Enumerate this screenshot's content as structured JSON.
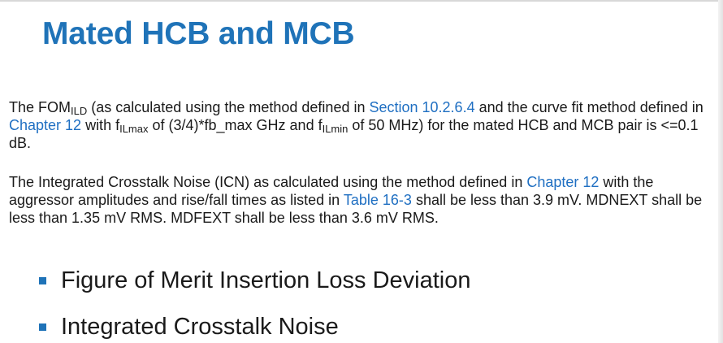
{
  "title": "Mated HCB and MCB",
  "paragraph1": {
    "t1": "The FOM",
    "sub1": "ILD",
    "t2": " (as calculated using the method defined in ",
    "link1": "Section 10.2.6.4",
    "t3": " and the curve fit method defined in ",
    "link2": "Chapter 12",
    "t4": " with f",
    "sub2": "ILmax",
    "t5": " of (3/4)*fb_max GHz and f",
    "sub3": "ILmin",
    "t6": " of 50 MHz) for the mated HCB and MCB pair is <=0.1 dB."
  },
  "paragraph2": {
    "t1": "The Integrated Crosstalk Noise (ICN) as calculated using the method defined in ",
    "link1": "Chapter 12",
    "t2": " with the aggressor amplitudes and rise/fall times as listed in ",
    "link2": "Table 16-3",
    "t3": " shall be less than 3.9 mV. MDNEXT shall be less than 1.35 mV RMS. MDFEXT shall be less than 3.6 mV RMS."
  },
  "bullets": [
    "Figure of Merit Insertion Loss Deviation",
    "Integrated Crosstalk Noise"
  ],
  "colors": {
    "title": "#1f73b8",
    "link": "#1f6fc2",
    "bullet": "#1f73b8",
    "text": "#1a1a1a"
  }
}
